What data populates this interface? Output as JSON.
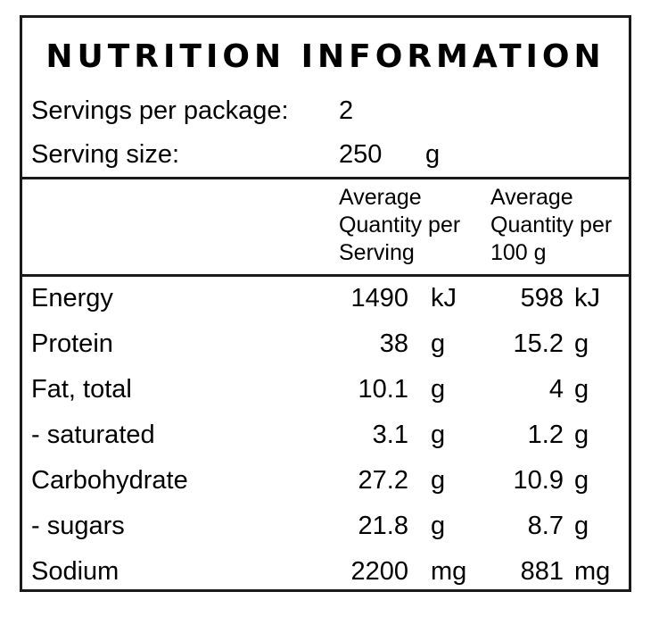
{
  "title": "NUTRITION INFORMATION",
  "servings": {
    "label": "Servings per package:",
    "value": "2"
  },
  "serving_size": {
    "label": "Serving size:",
    "value": "250",
    "unit": "g"
  },
  "columns": {
    "per_serving": "Average\nQuantity per\nServing",
    "per_100g": "Average\nQuantity per\n100 g"
  },
  "rows": [
    {
      "name": "Energy",
      "serving": "1490",
      "serving_unit": "kJ",
      "per100": "598",
      "per100_unit": "kJ"
    },
    {
      "name": "Protein",
      "serving": "38",
      "serving_unit": "g",
      "per100": "15.2",
      "per100_unit": "g"
    },
    {
      "name": "Fat, total",
      "serving": "10.1",
      "serving_unit": "g",
      "per100": "4",
      "per100_unit": "g"
    },
    {
      "name": "- saturated",
      "serving": "3.1",
      "serving_unit": "g",
      "per100": "1.2",
      "per100_unit": "g"
    },
    {
      "name": "Carbohydrate",
      "serving": "27.2",
      "serving_unit": "g",
      "per100": "10.9",
      "per100_unit": "g"
    },
    {
      "name": "- sugars",
      "serving": "21.8",
      "serving_unit": "g",
      "per100": "8.7",
      "per100_unit": "g"
    },
    {
      "name": "Sodium",
      "serving": "2200",
      "serving_unit": "mg",
      "per100": "881",
      "per100_unit": "mg"
    }
  ],
  "colors": {
    "border": "#1a1a1a",
    "text": "#000000",
    "background": "#ffffff"
  }
}
